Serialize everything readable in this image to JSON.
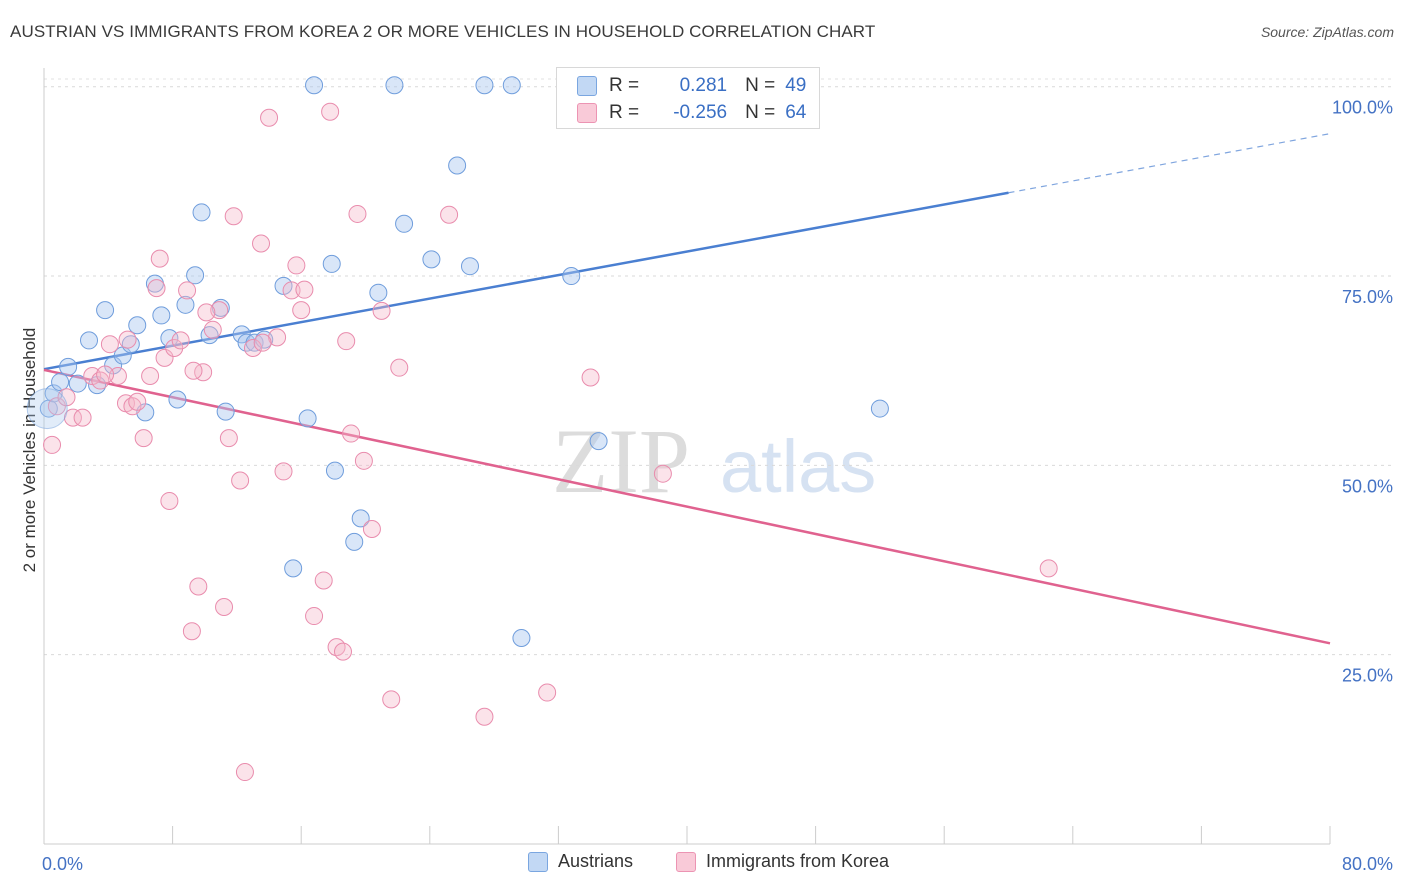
{
  "title": "AUSTRIAN VS IMMIGRANTS FROM KOREA 2 OR MORE VEHICLES IN HOUSEHOLD CORRELATION CHART",
  "source": "Source: ZipAtlas.com",
  "watermark": {
    "zip": "ZIP",
    "atlas": "atlas"
  },
  "colors": {
    "blue": "#4a7fd1",
    "blue_fill": "#aac8ef",
    "pink": "#e0628f",
    "pink_fill": "#f6b8cb",
    "axis_text": "#4472c4"
  },
  "legend_top": {
    "rows": [
      {
        "r_label": "R =",
        "r_value": "0.281",
        "n_label": "N =",
        "n_value": "49"
      },
      {
        "r_label": "R =",
        "r_value": "-0.256",
        "n_label": "N =",
        "n_value": "64"
      }
    ]
  },
  "chart_data": {
    "type": "scatter",
    "xlabel": "",
    "ylabel": "2 or more Vehicles in Household",
    "xlim": [
      0,
      80
    ],
    "ylim": [
      0,
      103
    ],
    "x_tick_labels": [
      {
        "value": 0,
        "label": "0.0%"
      },
      {
        "value": 80,
        "label": "80.0%"
      }
    ],
    "y_tick_labels": [
      {
        "value": 25,
        "label": "25.0%"
      },
      {
        "value": 50,
        "label": "50.0%"
      },
      {
        "value": 75,
        "label": "75.0%"
      },
      {
        "value": 100,
        "label": "100.0%"
      }
    ],
    "grid": "horizontal dashed",
    "legend": "bottom-center",
    "series": [
      {
        "name": "Austrians",
        "color": "#4a7fd1",
        "trend": {
          "x0": 0,
          "y0": 62.7,
          "x1": 60,
          "y1": 86.0,
          "dash_to_x": 80,
          "dash_to_y": 93.8
        },
        "points": [
          [
            0.3,
            57.5
          ],
          [
            0.6,
            59.5
          ],
          [
            1.0,
            61.0
          ],
          [
            1.5,
            63.0
          ],
          [
            2.1,
            60.8
          ],
          [
            2.8,
            66.5
          ],
          [
            3.3,
            60.6
          ],
          [
            3.8,
            70.5
          ],
          [
            4.3,
            63.2
          ],
          [
            4.9,
            64.5
          ],
          [
            5.4,
            66.0
          ],
          [
            5.8,
            68.5
          ],
          [
            6.3,
            57.0
          ],
          [
            6.9,
            74.0
          ],
          [
            7.3,
            69.8
          ],
          [
            7.8,
            66.8
          ],
          [
            8.3,
            58.7
          ],
          [
            8.8,
            71.2
          ],
          [
            9.4,
            75.1
          ],
          [
            9.8,
            83.4
          ],
          [
            10.3,
            67.2
          ],
          [
            11.0,
            70.8
          ],
          [
            11.3,
            57.1
          ],
          [
            12.3,
            67.3
          ],
          [
            12.6,
            66.2
          ],
          [
            13.1,
            66.2
          ],
          [
            13.7,
            66.6
          ],
          [
            14.9,
            73.7
          ],
          [
            15.5,
            36.4
          ],
          [
            16.4,
            56.2
          ],
          [
            16.8,
            100.2
          ],
          [
            17.9,
            76.6
          ],
          [
            18.1,
            49.3
          ],
          [
            19.3,
            39.9
          ],
          [
            19.7,
            43.0
          ],
          [
            20.8,
            72.8
          ],
          [
            21.8,
            100.2
          ],
          [
            22.4,
            81.9
          ],
          [
            24.1,
            77.2
          ],
          [
            25.7,
            89.6
          ],
          [
            26.5,
            76.3
          ],
          [
            27.4,
            100.2
          ],
          [
            29.1,
            100.2
          ],
          [
            29.7,
            27.2
          ],
          [
            32.8,
            75.0
          ],
          [
            33.3,
            100.2
          ],
          [
            34.5,
            53.2
          ],
          [
            37.6,
            100.2
          ],
          [
            52.0,
            57.5
          ]
        ]
      },
      {
        "name": "Immigrants from Korea",
        "color": "#e0628f",
        "trend": {
          "x0": 0,
          "y0": 62.6,
          "x1": 80,
          "y1": 26.5
        },
        "points": [
          [
            0.5,
            52.7
          ],
          [
            0.8,
            57.8
          ],
          [
            1.4,
            59.0
          ],
          [
            1.8,
            56.3
          ],
          [
            2.4,
            56.3
          ],
          [
            3.0,
            61.8
          ],
          [
            3.5,
            61.2
          ],
          [
            4.1,
            66.0
          ],
          [
            4.6,
            61.8
          ],
          [
            5.1,
            58.2
          ],
          [
            5.5,
            57.8
          ],
          [
            5.8,
            58.4
          ],
          [
            6.2,
            53.6
          ],
          [
            6.6,
            61.8
          ],
          [
            7.0,
            73.4
          ],
          [
            7.5,
            64.2
          ],
          [
            7.8,
            45.3
          ],
          [
            8.1,
            65.5
          ],
          [
            8.5,
            66.5
          ],
          [
            8.9,
            73.1
          ],
          [
            9.2,
            28.1
          ],
          [
            9.6,
            34.0
          ],
          [
            9.9,
            62.3
          ],
          [
            10.5,
            67.9
          ],
          [
            10.9,
            70.5
          ],
          [
            11.2,
            31.3
          ],
          [
            11.5,
            53.6
          ],
          [
            11.8,
            82.9
          ],
          [
            12.2,
            48.0
          ],
          [
            12.5,
            9.5
          ],
          [
            13.0,
            65.5
          ],
          [
            13.5,
            79.3
          ],
          [
            14.0,
            95.9
          ],
          [
            14.5,
            66.9
          ],
          [
            14.9,
            49.2
          ],
          [
            15.4,
            73.1
          ],
          [
            15.7,
            76.4
          ],
          [
            16.0,
            70.5
          ],
          [
            16.8,
            30.1
          ],
          [
            17.4,
            34.8
          ],
          [
            17.8,
            96.7
          ],
          [
            18.2,
            26.0
          ],
          [
            18.6,
            25.4
          ],
          [
            19.1,
            54.2
          ],
          [
            19.5,
            83.2
          ],
          [
            19.9,
            50.6
          ],
          [
            20.4,
            41.6
          ],
          [
            21.0,
            70.4
          ],
          [
            21.6,
            19.1
          ],
          [
            25.2,
            83.1
          ],
          [
            27.4,
            16.8
          ],
          [
            31.3,
            20.0
          ],
          [
            34.0,
            61.6
          ],
          [
            38.5,
            48.9
          ],
          [
            62.5,
            36.4
          ],
          [
            5.2,
            66.6
          ],
          [
            9.3,
            62.5
          ],
          [
            13.6,
            66.2
          ],
          [
            18.8,
            66.4
          ],
          [
            7.2,
            77.3
          ],
          [
            16.2,
            73.2
          ],
          [
            3.8,
            62.0
          ],
          [
            10.1,
            70.2
          ],
          [
            22.1,
            62.9
          ]
        ]
      }
    ]
  }
}
